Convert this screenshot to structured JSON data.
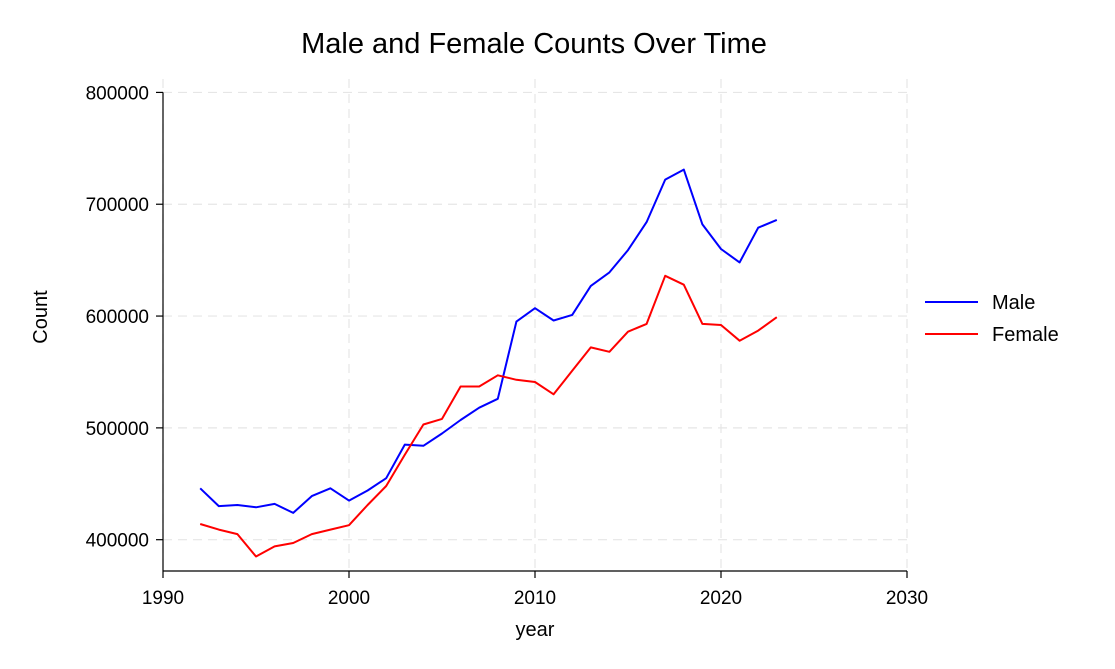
{
  "chart_data": {
    "type": "line",
    "title": "Male and Female Counts Over Time",
    "xlabel": "year",
    "ylabel": "Count",
    "xlim": [
      1990,
      2030
    ],
    "ylim": [
      372000,
      812000
    ],
    "xticks": [
      1990,
      2000,
      2010,
      2020,
      2030
    ],
    "yticks": [
      400000,
      500000,
      600000,
      700000,
      800000
    ],
    "grid": true,
    "legend_position": "right",
    "x": [
      1992,
      1993,
      1994,
      1995,
      1996,
      1997,
      1998,
      1999,
      2000,
      2001,
      2002,
      2003,
      2004,
      2005,
      2006,
      2007,
      2008,
      2009,
      2010,
      2011,
      2012,
      2013,
      2014,
      2015,
      2016,
      2017,
      2018,
      2019,
      2020,
      2021,
      2022,
      2023
    ],
    "series": [
      {
        "name": "Male",
        "color": "#0000ff",
        "values": [
          446000,
          430000,
          431000,
          429000,
          432000,
          424000,
          439000,
          446000,
          435000,
          444000,
          455000,
          485000,
          484000,
          495000,
          507000,
          518000,
          526000,
          595000,
          607000,
          596000,
          601000,
          627000,
          639000,
          659000,
          684000,
          722000,
          731000,
          682000,
          660000,
          648000,
          679000,
          686000
        ]
      },
      {
        "name": "Female",
        "color": "#ff0000",
        "values": [
          414000,
          409000,
          405000,
          385000,
          394000,
          397000,
          405000,
          409000,
          413000,
          431000,
          448000,
          476000,
          503000,
          508000,
          537000,
          537000,
          547000,
          543000,
          541000,
          530000,
          551000,
          572000,
          568000,
          586000,
          593000,
          636000,
          628000,
          593000,
          592000,
          578000,
          587000,
          599000
        ]
      }
    ]
  }
}
